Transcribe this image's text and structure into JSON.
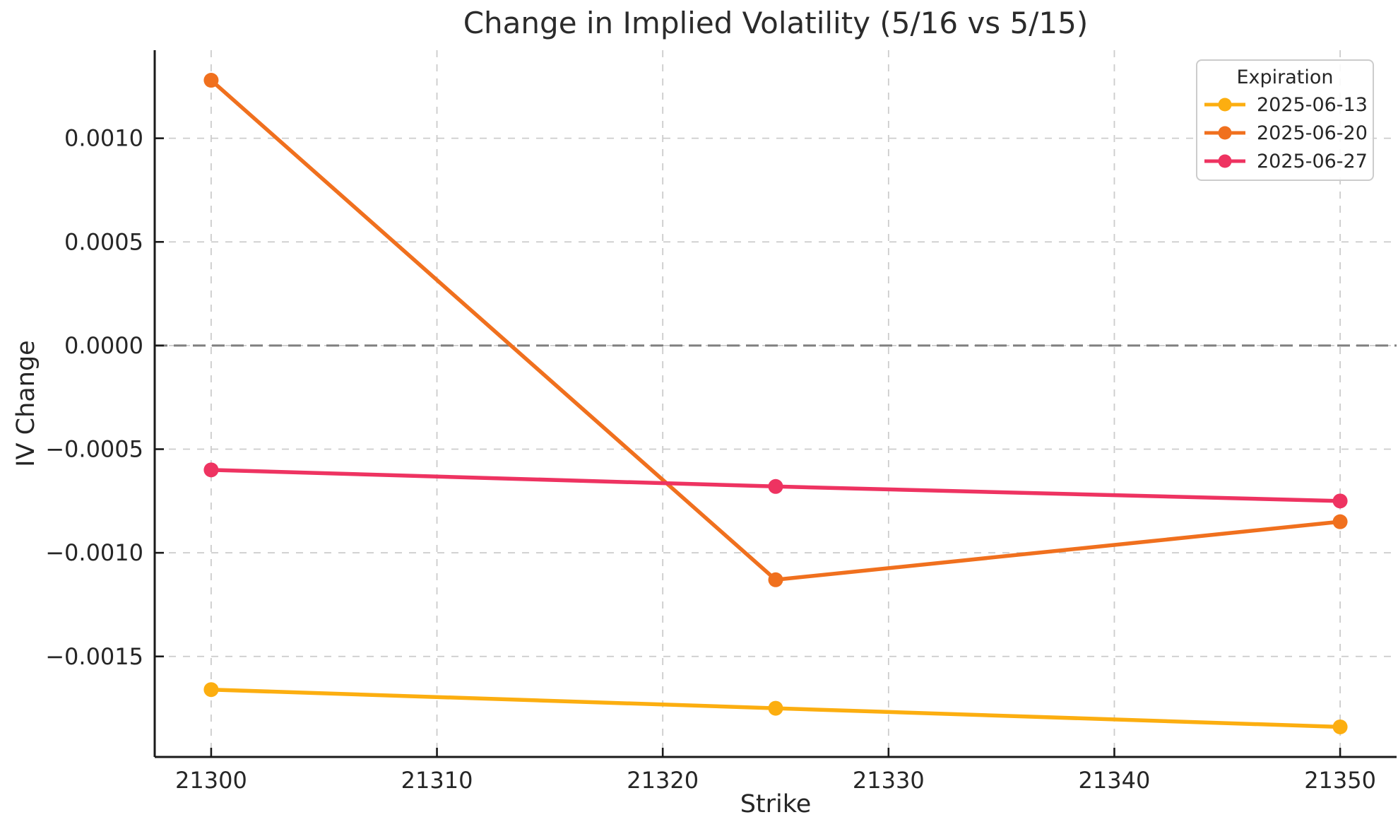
{
  "chart_data": {
    "type": "line",
    "title": "Change in Implied Volatility (5/16 vs 5/15)",
    "xlabel": "Strike",
    "ylabel": "IV Change",
    "x": [
      21300,
      21325,
      21350
    ],
    "series": [
      {
        "name": "2025-06-13",
        "color": "#FCAE10",
        "values": [
          -0.00166,
          -0.00175,
          -0.00184
        ]
      },
      {
        "name": "2025-06-20",
        "color": "#F0701E",
        "values": [
          0.00128,
          -0.00113,
          -0.00085
        ]
      },
      {
        "name": "2025-06-27",
        "color": "#EE3361",
        "values": [
          -0.0006,
          -0.00068,
          -0.00075
        ]
      }
    ],
    "xticks": {
      "values": [
        21300,
        21310,
        21320,
        21330,
        21340,
        21350
      ],
      "labels": [
        "21300",
        "21310",
        "21320",
        "21330",
        "21340",
        "21350"
      ]
    },
    "yticks": {
      "values": [
        0.001,
        0.0005,
        0.0,
        -0.0005,
        -0.001,
        -0.0015
      ],
      "labels": [
        "0.0010",
        "0.0005",
        "0.0000",
        "−0.0005",
        "−0.0010",
        "−0.0015"
      ]
    },
    "xlim": [
      21297.5,
      21352.5
    ],
    "ylim": [
      -0.001985,
      0.001425
    ],
    "zero_line": 0.0,
    "grid": true,
    "legend": {
      "title": "Expiration",
      "position": "upper right"
    },
    "style": {
      "text_color": "#262626",
      "spine_color": "#1a1a1a",
      "grid_color": "#cccccc",
      "zero_line_color": "#7f7f7f",
      "background": "#ffffff",
      "legend_border": "#cccccc"
    }
  }
}
